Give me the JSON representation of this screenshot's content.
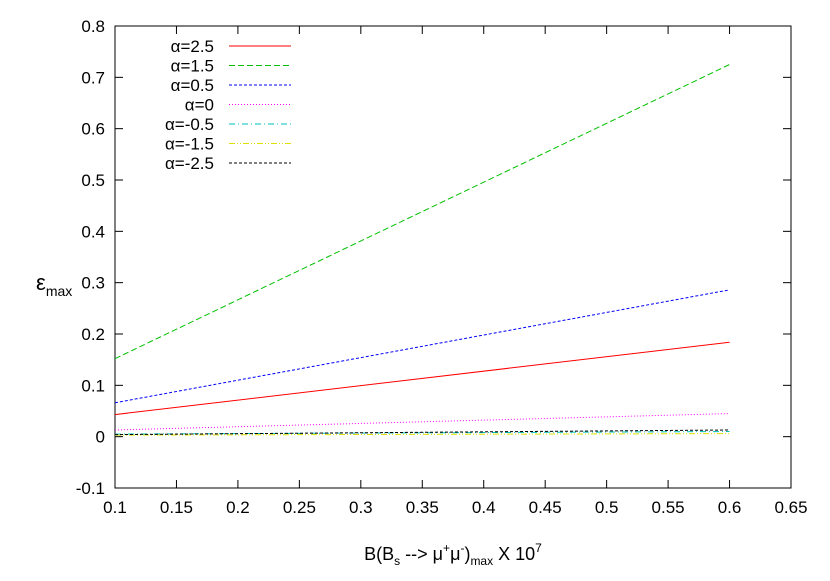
{
  "chart_data": {
    "type": "line",
    "title": "",
    "xlabel": {
      "main": "B(B",
      "sub1": "s",
      "arrow": " --> μ",
      "sup1": "+",
      "mu2": "μ",
      "sup2": "-",
      "close": ")",
      "sub2": "max",
      "tail": " X 10",
      "sup3": "7"
    },
    "ylabel": {
      "main": "ε",
      "sub": "max"
    },
    "xlim": [
      0.1,
      0.65
    ],
    "ylim": [
      -0.1,
      0.8
    ],
    "xticks": [
      "0.1",
      "0.15",
      "0.2",
      "0.25",
      "0.3",
      "0.35",
      "0.4",
      "0.45",
      "0.5",
      "0.55",
      "0.6",
      "0.65"
    ],
    "yticks": [
      "-0.1",
      "0",
      "0.1",
      "0.2",
      "0.3",
      "0.4",
      "0.5",
      "0.6",
      "0.7",
      "0.8"
    ],
    "grid": false,
    "legend_position": "top-left",
    "series": [
      {
        "name": "α=2.5",
        "color": "#ff0000",
        "dash": "solid",
        "x": [
          0.1,
          0.6
        ],
        "y": [
          0.043,
          0.184
        ]
      },
      {
        "name": "α=1.5",
        "color": "#00c000",
        "dash": "dashed",
        "x": [
          0.1,
          0.6
        ],
        "y": [
          0.152,
          0.725
        ]
      },
      {
        "name": "α=0.5",
        "color": "#0000ff",
        "dash": "short-dashed",
        "x": [
          0.1,
          0.6
        ],
        "y": [
          0.066,
          0.286
        ]
      },
      {
        "name": "α=0",
        "color": "#ff00ff",
        "dash": "dotted",
        "x": [
          0.1,
          0.6
        ],
        "y": [
          0.013,
          0.045
        ]
      },
      {
        "name": "α=-0.5",
        "color": "#00c0c0",
        "dash": "dash-dot",
        "x": [
          0.1,
          0.6
        ],
        "y": [
          0.005,
          0.01
        ]
      },
      {
        "name": "α=-1.5",
        "color": "#e0e000",
        "dash": "dash-dot-dot",
        "x": [
          0.1,
          0.6
        ],
        "y": [
          0.003,
          0.006
        ]
      },
      {
        "name": "α=-2.5",
        "color": "#000000",
        "dash": "short-dashed",
        "x": [
          0.1,
          0.6
        ],
        "y": [
          0.004,
          0.013
        ]
      }
    ]
  }
}
